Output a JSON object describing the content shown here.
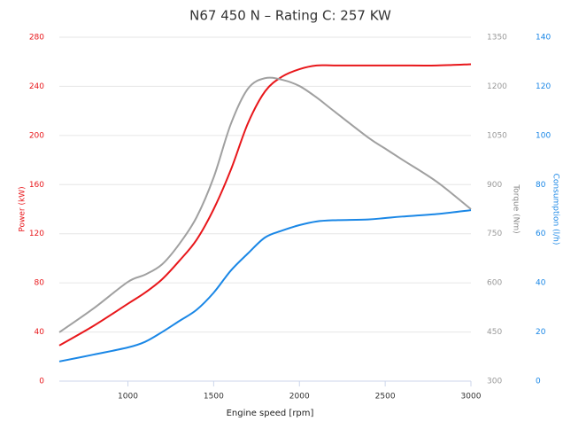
{
  "chart_data": {
    "type": "line",
    "title": "N67 450 N – Rating C: 257 KW",
    "xlabel": "Engine speed [rpm]",
    "ylabel": "Power (kW)",
    "y2label": "Torque (Nm)",
    "y3label": "Consumption (l/h)",
    "x": [
      600,
      800,
      1000,
      1100,
      1200,
      1300,
      1400,
      1500,
      1600,
      1700,
      1800,
      1900,
      2000,
      2100,
      2200,
      2400,
      2500,
      2600,
      2800,
      3000
    ],
    "xlim": [
      600,
      3000
    ],
    "xticks": [
      1000,
      1500,
      2000,
      2500,
      3000
    ],
    "ylim": [
      0,
      280
    ],
    "yticks": [
      0,
      40,
      80,
      120,
      160,
      200,
      240,
      280
    ],
    "y2lim": [
      300,
      1350
    ],
    "y2ticks": [
      300,
      450,
      600,
      750,
      900,
      1050,
      1200,
      1350
    ],
    "y3lim": [
      0,
      140
    ],
    "y3ticks": [
      0,
      20,
      40,
      60,
      80,
      100,
      120,
      140
    ],
    "grid": true,
    "series": [
      {
        "name": "Power (kW)",
        "color": "#e8171b",
        "axis": "y",
        "values": [
          29,
          45,
          63,
          72,
          83,
          98,
          115,
          140,
          172,
          210,
          236,
          248,
          254,
          257,
          257,
          257,
          257,
          257,
          257,
          258
        ]
      },
      {
        "name": "Torque (Nm)",
        "color": "#a0a0a0",
        "axis": "y2",
        "values": [
          449,
          522,
          603,
          625,
          657,
          719,
          800,
          922,
          1085,
          1193,
          1225,
          1220,
          1201,
          1166,
          1125,
          1044,
          1010,
          976,
          909,
          825
        ]
      },
      {
        "name": "Consumption (l/h)",
        "color": "#1a87e6",
        "axis": "y3",
        "values": [
          8,
          10.8,
          13.7,
          16,
          20,
          24.5,
          29,
          36,
          45,
          52,
          58.5,
          61.3,
          63.5,
          65,
          65.5,
          65.8,
          66.4,
          67,
          68,
          69.6
        ]
      }
    ]
  }
}
